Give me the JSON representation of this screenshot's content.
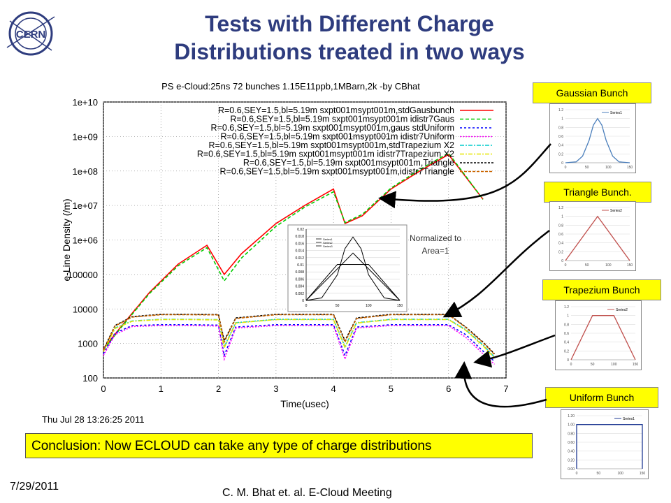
{
  "slide": {
    "title_line1": "Tests with Different Charge",
    "title_line2": "Distributions treated in two ways",
    "logo_text": "CERN",
    "normalized_note_line1": "Normalized to",
    "normalized_note_line2": "Area=1",
    "conclusion": "Conclusion: Now ECLOUD can take any type of charge distributions",
    "date": "7/29/2011",
    "author": "C. M. Bhat et. al. E-Cloud Meeting",
    "callouts": [
      "Gaussian Bunch",
      "Triangle Bunch.",
      "Trapezium Bunch",
      "Uniform Bunch"
    ],
    "colors": {
      "title": "#2e3c7e",
      "callout_bg": "#ffff00",
      "plot_text": "#000000"
    }
  },
  "chart_data": [
    {
      "type": "line",
      "title": "PS e-Cloud:25ns 72 bunches 1.15E11ppb,1MBarn,2k -by CBhat",
      "xlabel": "Time(usec)",
      "ylabel": "e-Line Density (/m)",
      "xlim": [
        0,
        7
      ],
      "ylim": [
        100,
        10000000000
      ],
      "yscale": "log",
      "x_ticks": [
        "0",
        "1",
        "2",
        "3",
        "4",
        "5",
        "6",
        "7"
      ],
      "y_ticks": [
        "100",
        "1000",
        "10000",
        "100000",
        "1e+06",
        "1e+07",
        "1e+08",
        "1e+09",
        "1e+10"
      ],
      "timestamp": "Thu Jul 28 13:26:25 2011",
      "grid": true,
      "legend_position": "top-right",
      "series": [
        {
          "name": "R=0.6,SEY=1.5,bl=5.19m sxpt001msypt001m,stdGausbunch",
          "color": "#ff0000",
          "dash": "solid",
          "x": [
            0,
            0.3,
            0.8,
            1.3,
            1.8,
            2.1,
            2.4,
            3.0,
            3.5,
            4.0,
            4.2,
            4.5,
            5.0,
            5.5,
            6.0,
            6.6
          ],
          "y": [
            700,
            3000,
            30000,
            200000,
            700000,
            100000,
            400000,
            3000000,
            10000000,
            30000000,
            3000000,
            5000000,
            30000000,
            100000000,
            300000000,
            15000000
          ]
        },
        {
          "name": "R=0.6,SEY=1.5,bl=5.19m sxpt001msypt001m idistr7Gaus",
          "color": "#00cc00",
          "dash": "5,3",
          "x": [
            0,
            0.3,
            0.8,
            1.3,
            1.8,
            2.1,
            2.4,
            3.0,
            3.5,
            4.0,
            4.2,
            4.5,
            5.0,
            5.5,
            6.0,
            6.6
          ],
          "y": [
            650,
            2800,
            28000,
            180000,
            600000,
            65000,
            300000,
            2500000,
            9000000,
            25000000,
            3200000,
            5500000,
            32000000,
            110000000,
            330000000,
            15000000
          ]
        },
        {
          "name": "R=0.6,SEY=1.5,bl=5.19m sxpt001msypt001m,gaus stdUniform",
          "color": "#0000ff",
          "dash": "3,3",
          "x": [
            0,
            0.2,
            0.5,
            1.0,
            1.5,
            2.0,
            2.1,
            2.3,
            3.0,
            4.0,
            4.2,
            4.4,
            5.0,
            6.0,
            6.3,
            6.6,
            6.8
          ],
          "y": [
            500,
            2000,
            3300,
            3500,
            3500,
            3400,
            450,
            3000,
            3500,
            3500,
            450,
            3000,
            3500,
            3500,
            1800,
            600,
            300
          ]
        },
        {
          "name": "R=0.6,SEY=1.5,bl=5.19m sxpt001msypt001m idistr7Uniform",
          "color": "#ff00ff",
          "dash": "2,2",
          "x": [
            0,
            0.2,
            0.5,
            1.0,
            1.5,
            2.0,
            2.1,
            2.3,
            3.0,
            4.0,
            4.2,
            4.4,
            5.0,
            6.0,
            6.3,
            6.6,
            6.8
          ],
          "y": [
            450,
            1800,
            3100,
            3300,
            3300,
            3200,
            350,
            2800,
            3300,
            3300,
            350,
            2800,
            3300,
            3300,
            1500,
            500,
            250
          ]
        },
        {
          "name": "R=0.6,SEY=1.5,bl=5.19m sxpt001msypt001m,stdTrapezium X2",
          "color": "#00cccc",
          "dash": "6,2,2,2",
          "x": [
            0,
            0.2,
            0.5,
            1.0,
            1.5,
            2.0,
            2.1,
            2.3,
            3.0,
            4.0,
            4.2,
            4.4,
            5.0,
            6.0,
            6.3,
            6.6,
            6.8
          ],
          "y": [
            600,
            2800,
            4500,
            5000,
            5000,
            4900,
            800,
            4000,
            5000,
            5000,
            800,
            4000,
            5000,
            5000,
            2500,
            900,
            400
          ]
        },
        {
          "name": "R=0.6,SEY=1.5,bl=5.19m sxpt001msypt001m idistr7Trapezium X2",
          "color": "#e6e600",
          "dash": "6,2,2,2",
          "x": [
            0,
            0.2,
            0.5,
            1.0,
            1.5,
            2.0,
            2.1,
            2.3,
            3.0,
            4.0,
            4.2,
            4.4,
            5.0,
            6.0,
            6.3,
            6.6,
            6.8
          ],
          "y": [
            580,
            2700,
            4400,
            4900,
            4900,
            4800,
            750,
            3900,
            4900,
            4900,
            750,
            3900,
            4900,
            4900,
            2400,
            850,
            380
          ]
        },
        {
          "name": "R=0.6,SEY=1.5,bl=5.19m sxpt001msypt001m,Triangle",
          "color": "#000000",
          "dash": "3,2",
          "x": [
            0,
            0.2,
            0.5,
            1.0,
            1.5,
            2.0,
            2.1,
            2.3,
            3.0,
            4.0,
            4.2,
            4.4,
            5.0,
            6.0,
            6.3,
            6.6,
            6.8
          ],
          "y": [
            650,
            3300,
            6000,
            7000,
            7000,
            6900,
            1200,
            5500,
            7000,
            7000,
            1200,
            5500,
            7000,
            7000,
            3000,
            1100,
            500
          ]
        },
        {
          "name": "R=0.6,SEY=1.5,bl=5.19m sxpt001msypt001m,idistr7Triangle",
          "color": "#cc6600",
          "dash": "4,2",
          "x": [
            0,
            0.2,
            0.5,
            1.0,
            1.5,
            2.0,
            2.1,
            2.3,
            3.0,
            4.0,
            4.2,
            4.4,
            5.0,
            6.0,
            6.3,
            6.6,
            6.8
          ],
          "y": [
            620,
            3200,
            5800,
            6800,
            6800,
            6700,
            1100,
            5300,
            6800,
            6800,
            1100,
            5300,
            6800,
            6800,
            2900,
            1050,
            480
          ]
        }
      ]
    },
    {
      "type": "line",
      "title": "",
      "xlim": [
        0,
        150
      ],
      "ylim": [
        0,
        0.02
      ],
      "x_ticks": [
        "0",
        "50",
        "100",
        "150"
      ],
      "y_ticks": [
        "0",
        "0.002",
        "0.004",
        "0.006",
        "0.008",
        "0.01",
        "0.012",
        "0.014",
        "0.016",
        "0.018",
        "0.02"
      ],
      "legend_position": "top-left",
      "series": [
        {
          "name": "Series1",
          "color": "#000000",
          "x": [
            0,
            25,
            50,
            62,
            75,
            88,
            100,
            125,
            150
          ],
          "y": [
            0,
            0.0007,
            0.0072,
            0.0145,
            0.0178,
            0.0145,
            0.0072,
            0.0007,
            0
          ]
        },
        {
          "name": "Series2",
          "color": "#000000",
          "x": [
            0,
            75,
            150
          ],
          "y": [
            0,
            0.0133,
            0
          ]
        },
        {
          "name": "Series3",
          "color": "#000000",
          "x": [
            0,
            50,
            100,
            150
          ],
          "y": [
            0,
            0.0101,
            0.0101,
            0
          ]
        }
      ]
    },
    {
      "type": "line",
      "title": "",
      "xlim": [
        0,
        150
      ],
      "ylim": [
        0,
        1.2
      ],
      "x_ticks": [
        "0",
        "50",
        "100",
        "150"
      ],
      "y_ticks": [
        "0",
        "0.2",
        "0.4",
        "0.6",
        "0.8",
        "1",
        "1.2"
      ],
      "legend_position": "top-right",
      "series": [
        {
          "name": "Series1",
          "color": "#4a7ebb",
          "x": [
            0,
            25,
            40,
            55,
            65,
            75,
            85,
            95,
            110,
            125,
            150
          ],
          "y": [
            0,
            0.02,
            0.15,
            0.5,
            0.85,
            1.0,
            0.85,
            0.5,
            0.15,
            0.02,
            0
          ]
        }
      ]
    },
    {
      "type": "line",
      "title": "",
      "xlim": [
        0,
        150
      ],
      "ylim": [
        0,
        1.2
      ],
      "x_ticks": [
        "0",
        "50",
        "100",
        "150"
      ],
      "y_ticks": [
        "0",
        "0.2",
        "0.4",
        "0.6",
        "0.8",
        "1",
        "1.2"
      ],
      "legend_position": "top-right",
      "series": [
        {
          "name": "Series2",
          "color": "#c0504d",
          "x": [
            0,
            75,
            150
          ],
          "y": [
            0,
            1.0,
            0
          ]
        }
      ]
    },
    {
      "type": "line",
      "title": "",
      "xlim": [
        0,
        150
      ],
      "ylim": [
        0,
        1.2
      ],
      "x_ticks": [
        "0",
        "50",
        "100",
        "150"
      ],
      "y_ticks": [
        "0",
        "0.2",
        "0.4",
        "0.6",
        "0.8",
        "1",
        "1.2"
      ],
      "legend_position": "top-right",
      "series": [
        {
          "name": "Series2",
          "color": "#c0504d",
          "x": [
            0,
            50,
            100,
            150
          ],
          "y": [
            0,
            1.0,
            1.0,
            0
          ]
        }
      ]
    },
    {
      "type": "line",
      "title": "",
      "xlim": [
        0,
        150
      ],
      "ylim": [
        0,
        1.2
      ],
      "x_ticks": [
        "0",
        "50",
        "100",
        "150"
      ],
      "y_ticks": [
        "0.00",
        "0.20",
        "0.40",
        "0.60",
        "0.80",
        "1.00",
        "1.20"
      ],
      "legend_position": "top-right",
      "series": [
        {
          "name": "Series1",
          "color": "#1f3a93",
          "x": [
            0,
            0,
            150,
            150
          ],
          "y": [
            0,
            1.0,
            1.0,
            0
          ]
        }
      ]
    }
  ]
}
